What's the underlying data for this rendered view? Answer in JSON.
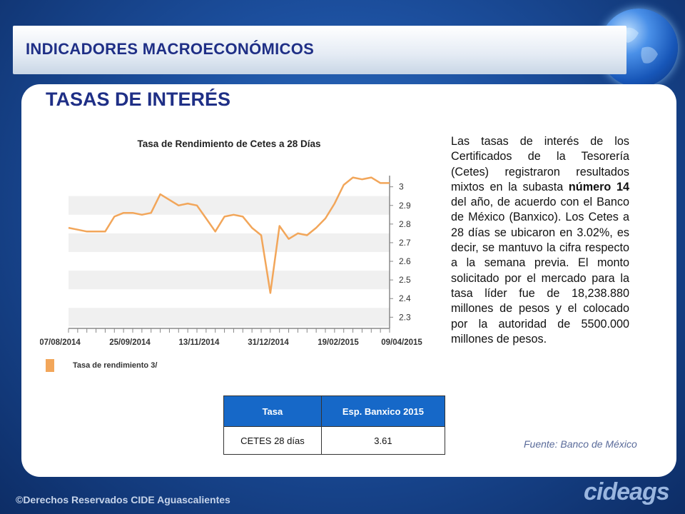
{
  "header": {
    "title": "INDICADORES MACROECONÓMICOS"
  },
  "section": {
    "title": "TASAS DE INTERÉS"
  },
  "chart_data": {
    "type": "line",
    "title": "Tasa de Rendimiento de Cetes a 28 Días",
    "x_tick_labels": [
      "07/08/2014",
      "25/09/2014",
      "13/11/2014",
      "31/12/2014",
      "19/02/2015",
      "09/04/2015"
    ],
    "y_ticks": [
      2.3,
      2.4,
      2.5,
      2.6,
      2.7,
      2.8,
      2.9,
      3
    ],
    "ylim": [
      2.24,
      3.06
    ],
    "legend_position": "bottom-left",
    "grid": "alternating horizontal bands",
    "series": [
      {
        "name": "Tasa de rendimiento 3/",
        "color": "#f2a65a",
        "values": [
          2.78,
          2.77,
          2.76,
          2.76,
          2.76,
          2.84,
          2.86,
          2.86,
          2.85,
          2.86,
          2.96,
          2.93,
          2.9,
          2.91,
          2.9,
          2.83,
          2.76,
          2.84,
          2.85,
          2.84,
          2.78,
          2.74,
          2.43,
          2.79,
          2.72,
          2.75,
          2.74,
          2.78,
          2.83,
          2.91,
          3.01,
          3.05,
          3.04,
          3.05,
          3.02,
          3.02
        ]
      }
    ]
  },
  "body": {
    "paragraph_start": "Las tasas de interés de los Certificados de la Tesorería (Cetes) registraron resultados mixtos en la subasta ",
    "paragraph_bold": "número 14",
    "paragraph_end": " del año, de acuerdo con el Banco de México (Banxico). Los Cetes a 28 días se ubicaron en 3.02%, es decir, se mantuvo la cifra respecto a la semana previa. El monto solicitado por el mercado para la tasa líder fue de 18,238.880 millones de pesos y el colocado por la autoridad de 5500.000 millones de pesos."
  },
  "table": {
    "headers": [
      "Tasa",
      "Esp. Banxico 2015"
    ],
    "rows": [
      [
        "CETES 28 días",
        "3.61"
      ]
    ]
  },
  "source": "Fuente: Banco de México",
  "footer": {
    "copyright": "©Derechos Reservados CIDE Aguascalientes",
    "logo_text": "cideags"
  }
}
